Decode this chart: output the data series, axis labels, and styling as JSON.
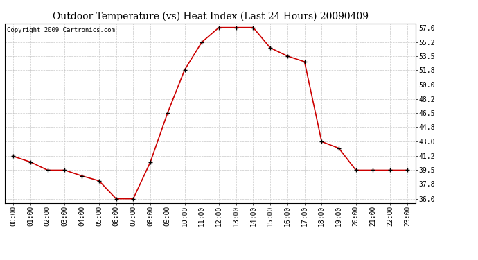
{
  "title": "Outdoor Temperature (vs) Heat Index (Last 24 Hours) 20090409",
  "copyright_text": "Copyright 2009 Cartronics.com",
  "line_color": "#cc0000",
  "marker_color": "#000000",
  "background_color": "#ffffff",
  "grid_color": "#bbbbbb",
  "x_labels": [
    "00:00",
    "01:00",
    "02:00",
    "03:00",
    "04:00",
    "05:00",
    "06:00",
    "07:00",
    "08:00",
    "09:00",
    "10:00",
    "11:00",
    "12:00",
    "13:00",
    "14:00",
    "15:00",
    "16:00",
    "17:00",
    "18:00",
    "19:00",
    "20:00",
    "21:00",
    "22:00",
    "23:00"
  ],
  "y_values": [
    41.2,
    40.5,
    39.5,
    39.5,
    38.8,
    38.2,
    36.0,
    36.0,
    40.5,
    46.5,
    51.8,
    55.2,
    57.0,
    57.0,
    57.0,
    54.5,
    53.5,
    52.8,
    43.0,
    42.2,
    39.5,
    39.5,
    39.5,
    39.5
  ],
  "y_ticks": [
    36.0,
    37.8,
    39.5,
    41.2,
    43.0,
    44.8,
    46.5,
    48.2,
    50.0,
    51.8,
    53.5,
    55.2,
    57.0
  ],
  "ylim": [
    35.5,
    57.5
  ],
  "title_fontsize": 10,
  "tick_fontsize": 7,
  "copyright_fontsize": 6.5
}
